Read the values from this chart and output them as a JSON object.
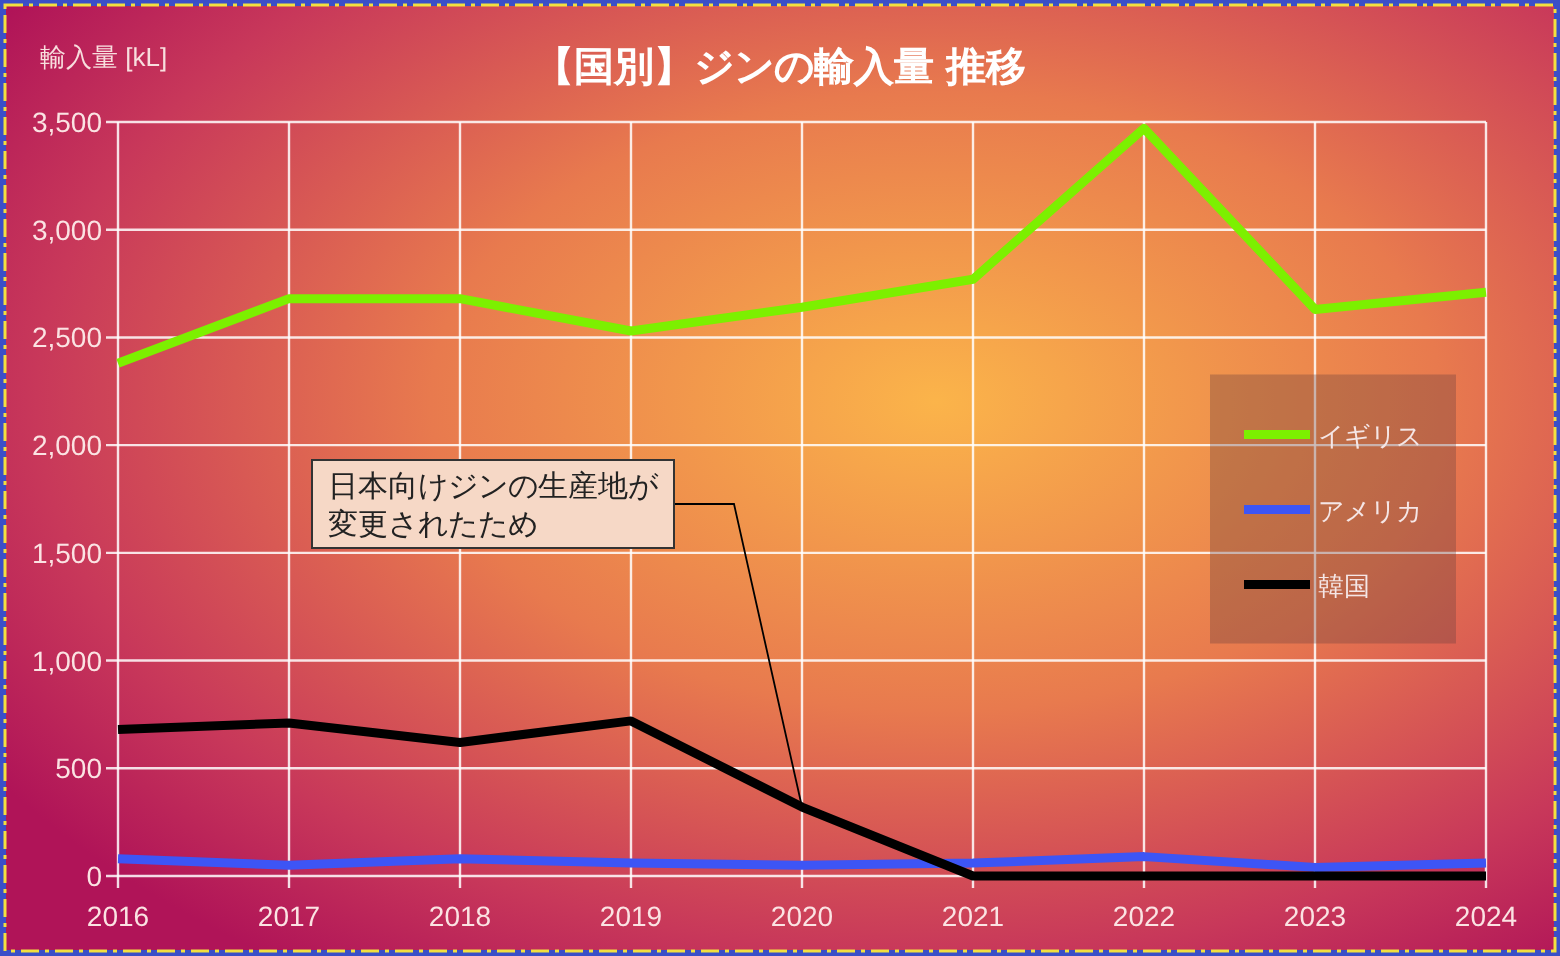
{
  "chart_data": {
    "type": "line",
    "title": "【国別】ジンの輸入量 推移",
    "ylabel": "輸入量 [kL]",
    "x": [
      2016,
      2017,
      2018,
      2019,
      2020,
      2021,
      2022,
      2023,
      2024
    ],
    "xlim": [
      2016,
      2024
    ],
    "xticks": [
      2016,
      2017,
      2018,
      2019,
      2020,
      2021,
      2022,
      2023,
      2024
    ],
    "ylim": [
      0,
      3500
    ],
    "yticks": [
      0,
      {
        "value": 500,
        "label": "500"
      },
      {
        "value": 1000,
        "label": "1,000"
      },
      {
        "value": 1500,
        "label": "1,500"
      },
      {
        "value": 2000,
        "label": "2,000"
      },
      {
        "value": 2500,
        "label": "2,500"
      },
      {
        "value": 3000,
        "label": "3,000"
      },
      {
        "value": 3500,
        "label": "3,500"
      }
    ],
    "grid": true,
    "legend": "right",
    "series": [
      {
        "name": "イギリス",
        "color": "#7cf000",
        "values": [
          2380,
          2680,
          2680,
          2530,
          2640,
          2770,
          3470,
          2630,
          2710
        ]
      },
      {
        "name": "アメリカ",
        "color": "#3d55f5",
        "values": [
          80,
          50,
          80,
          60,
          50,
          60,
          90,
          40,
          60
        ]
      },
      {
        "name": "韓国",
        "color": "#000000",
        "values": [
          680,
          710,
          620,
          720,
          320,
          0,
          0,
          0,
          0
        ]
      }
    ],
    "annotations": [
      {
        "text": "日本向けジンの生産地が変更されたため",
        "x": 2020,
        "y": 320
      }
    ]
  }
}
